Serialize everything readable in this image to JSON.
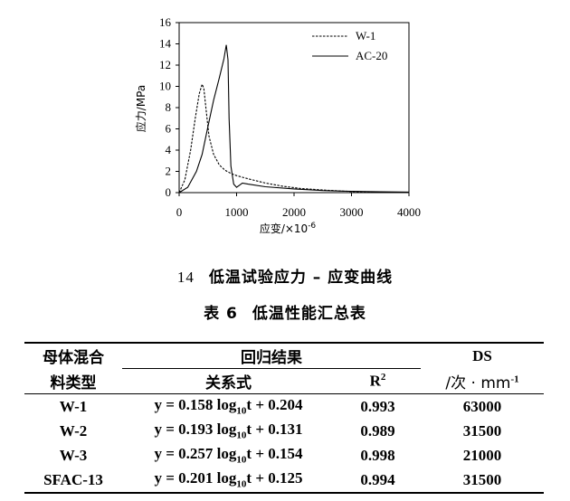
{
  "chart_data": {
    "type": "line",
    "xlabel": "应变/×10-6",
    "ylabel": "应力/MPa",
    "xlim": [
      0,
      4000
    ],
    "ylim": [
      0,
      16
    ],
    "xticks": [
      "0",
      "1000",
      "2000",
      "3000",
      "4000"
    ],
    "yticks": [
      "0",
      "2",
      "4",
      "6",
      "8",
      "10",
      "12",
      "14",
      "16"
    ],
    "grid": false,
    "legend_position": "top-right",
    "series": [
      {
        "name": "W-1",
        "style": "dashed",
        "x": [
          0,
          100,
          200,
          280,
          350,
          400,
          430,
          470,
          520,
          600,
          700,
          800,
          900,
          1000,
          1200,
          1500,
          1800,
          2100,
          2500,
          3000,
          3500
        ],
        "y": [
          0,
          1.2,
          4.0,
          7.0,
          9.3,
          10.2,
          9.8,
          7.8,
          5.3,
          3.6,
          2.6,
          2.1,
          1.8,
          1.6,
          1.3,
          0.9,
          0.6,
          0.4,
          0.25,
          0.1,
          0.05
        ]
      },
      {
        "name": "AC-20",
        "style": "solid",
        "x": [
          0,
          150,
          300,
          400,
          500,
          600,
          700,
          780,
          820,
          850,
          870,
          900,
          950,
          1000,
          1050,
          1100,
          1200,
          1500,
          2000,
          2500,
          3000,
          3500,
          4000
        ],
        "y": [
          0,
          0.5,
          2.0,
          3.6,
          6.2,
          8.7,
          10.8,
          12.6,
          13.9,
          12.5,
          7.0,
          2.5,
          0.8,
          0.5,
          0.7,
          0.9,
          0.8,
          0.55,
          0.35,
          0.2,
          0.12,
          0.08,
          0.05
        ]
      }
    ]
  },
  "figure_caption": {
    "number": "14",
    "text": "低温试验应力 – 应变曲线"
  },
  "table_caption": {
    "label": "表 6",
    "text": "低温性能汇总表"
  },
  "table": {
    "header_col1_line1": "母体混合",
    "header_col1_line2": "料类型",
    "header_group": "回归结果",
    "header_relation": "关系式",
    "header_r2_base": "R",
    "header_r2_sup": "2",
    "header_ds": "DS",
    "header_unit_prefix": "/次 · mm",
    "header_unit_sup": "-1",
    "rows": [
      {
        "type": "W-1",
        "eq_a": "y = 0.158 log",
        "eq_sub": "10",
        "eq_b": "t + 0.204",
        "r2": "0.993",
        "ds": "63000"
      },
      {
        "type": "W-2",
        "eq_a": "y = 0.193 log",
        "eq_sub": "10",
        "eq_b": "t + 0.131",
        "r2": "0.989",
        "ds": "31500"
      },
      {
        "type": "W-3",
        "eq_a": "y = 0.257 log",
        "eq_sub": "10",
        "eq_b": "t + 0.154",
        "r2": "0.998",
        "ds": "21000"
      },
      {
        "type": "SFAC-13",
        "eq_a": "y = 0.201 log",
        "eq_sub": "10",
        "eq_b": "t + 0.125",
        "r2": "0.994",
        "ds": "31500"
      }
    ]
  }
}
